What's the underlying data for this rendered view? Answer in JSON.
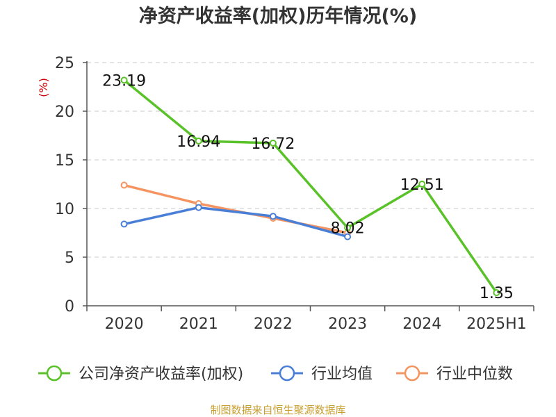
{
  "chart_data": {
    "type": "line",
    "title": "净资产收益率(加权)历年情况(%)",
    "ylabel": "(%)",
    "ylim": [
      0,
      25
    ],
    "yticks": [
      0,
      5,
      10,
      15,
      20,
      25
    ],
    "grid": true,
    "legend_placement": "bottom",
    "categories": [
      "2020",
      "2021",
      "2022",
      "2023",
      "2024",
      "2025H1"
    ],
    "series": [
      {
        "name": "公司净资产收益率(加权)",
        "color": "#5ac229",
        "values": [
          23.19,
          16.94,
          16.72,
          8.02,
          12.51,
          1.35
        ],
        "labels": [
          "23.19",
          "16.94",
          "16.72",
          "8.02",
          "12.51",
          "1.35"
        ]
      },
      {
        "name": "行业均值",
        "color": "#4a7fd8",
        "values": [
          8.4,
          10.1,
          9.2,
          7.1,
          null,
          null
        ]
      },
      {
        "name": "行业中位数",
        "color": "#f59460",
        "values": [
          12.4,
          10.5,
          9.0,
          7.5,
          null,
          null
        ]
      }
    ],
    "source": "制图数据来自恒生聚源数据库"
  }
}
